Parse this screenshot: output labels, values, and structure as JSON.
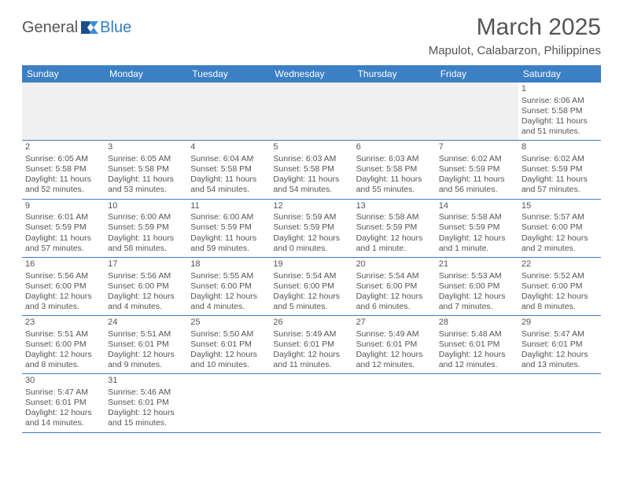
{
  "brand": {
    "part1": "General",
    "part2": "Blue"
  },
  "title": "March 2025",
  "location": "Mapulot, Calabarzon, Philippines",
  "colors": {
    "header_bg": "#3b7fc4",
    "header_text": "#ffffff",
    "border": "#3b7fc4",
    "body_text": "#555555",
    "empty_row_bg": "#f0f0f0",
    "brand_gray": "#555555",
    "brand_blue": "#2f7fbf"
  },
  "day_headers": [
    "Sunday",
    "Monday",
    "Tuesday",
    "Wednesday",
    "Thursday",
    "Friday",
    "Saturday"
  ],
  "weeks": [
    [
      null,
      null,
      null,
      null,
      null,
      null,
      {
        "n": "1",
        "sr": "6:06 AM",
        "ss": "5:58 PM",
        "dl": "11 hours and 51 minutes."
      }
    ],
    [
      {
        "n": "2",
        "sr": "6:05 AM",
        "ss": "5:58 PM",
        "dl": "11 hours and 52 minutes."
      },
      {
        "n": "3",
        "sr": "6:05 AM",
        "ss": "5:58 PM",
        "dl": "11 hours and 53 minutes."
      },
      {
        "n": "4",
        "sr": "6:04 AM",
        "ss": "5:58 PM",
        "dl": "11 hours and 54 minutes."
      },
      {
        "n": "5",
        "sr": "6:03 AM",
        "ss": "5:58 PM",
        "dl": "11 hours and 54 minutes."
      },
      {
        "n": "6",
        "sr": "6:03 AM",
        "ss": "5:58 PM",
        "dl": "11 hours and 55 minutes."
      },
      {
        "n": "7",
        "sr": "6:02 AM",
        "ss": "5:59 PM",
        "dl": "11 hours and 56 minutes."
      },
      {
        "n": "8",
        "sr": "6:02 AM",
        "ss": "5:59 PM",
        "dl": "11 hours and 57 minutes."
      }
    ],
    [
      {
        "n": "9",
        "sr": "6:01 AM",
        "ss": "5:59 PM",
        "dl": "11 hours and 57 minutes."
      },
      {
        "n": "10",
        "sr": "6:00 AM",
        "ss": "5:59 PM",
        "dl": "11 hours and 58 minutes."
      },
      {
        "n": "11",
        "sr": "6:00 AM",
        "ss": "5:59 PM",
        "dl": "11 hours and 59 minutes."
      },
      {
        "n": "12",
        "sr": "5:59 AM",
        "ss": "5:59 PM",
        "dl": "12 hours and 0 minutes."
      },
      {
        "n": "13",
        "sr": "5:58 AM",
        "ss": "5:59 PM",
        "dl": "12 hours and 1 minute."
      },
      {
        "n": "14",
        "sr": "5:58 AM",
        "ss": "5:59 PM",
        "dl": "12 hours and 1 minute."
      },
      {
        "n": "15",
        "sr": "5:57 AM",
        "ss": "6:00 PM",
        "dl": "12 hours and 2 minutes."
      }
    ],
    [
      {
        "n": "16",
        "sr": "5:56 AM",
        "ss": "6:00 PM",
        "dl": "12 hours and 3 minutes."
      },
      {
        "n": "17",
        "sr": "5:56 AM",
        "ss": "6:00 PM",
        "dl": "12 hours and 4 minutes."
      },
      {
        "n": "18",
        "sr": "5:55 AM",
        "ss": "6:00 PM",
        "dl": "12 hours and 4 minutes."
      },
      {
        "n": "19",
        "sr": "5:54 AM",
        "ss": "6:00 PM",
        "dl": "12 hours and 5 minutes."
      },
      {
        "n": "20",
        "sr": "5:54 AM",
        "ss": "6:00 PM",
        "dl": "12 hours and 6 minutes."
      },
      {
        "n": "21",
        "sr": "5:53 AM",
        "ss": "6:00 PM",
        "dl": "12 hours and 7 minutes."
      },
      {
        "n": "22",
        "sr": "5:52 AM",
        "ss": "6:00 PM",
        "dl": "12 hours and 8 minutes."
      }
    ],
    [
      {
        "n": "23",
        "sr": "5:51 AM",
        "ss": "6:00 PM",
        "dl": "12 hours and 8 minutes."
      },
      {
        "n": "24",
        "sr": "5:51 AM",
        "ss": "6:01 PM",
        "dl": "12 hours and 9 minutes."
      },
      {
        "n": "25",
        "sr": "5:50 AM",
        "ss": "6:01 PM",
        "dl": "12 hours and 10 minutes."
      },
      {
        "n": "26",
        "sr": "5:49 AM",
        "ss": "6:01 PM",
        "dl": "12 hours and 11 minutes."
      },
      {
        "n": "27",
        "sr": "5:49 AM",
        "ss": "6:01 PM",
        "dl": "12 hours and 12 minutes."
      },
      {
        "n": "28",
        "sr": "5:48 AM",
        "ss": "6:01 PM",
        "dl": "12 hours and 12 minutes."
      },
      {
        "n": "29",
        "sr": "5:47 AM",
        "ss": "6:01 PM",
        "dl": "12 hours and 13 minutes."
      }
    ],
    [
      {
        "n": "30",
        "sr": "5:47 AM",
        "ss": "6:01 PM",
        "dl": "12 hours and 14 minutes."
      },
      {
        "n": "31",
        "sr": "5:46 AM",
        "ss": "6:01 PM",
        "dl": "12 hours and 15 minutes."
      },
      null,
      null,
      null,
      null,
      null
    ]
  ],
  "labels": {
    "sunrise": "Sunrise:",
    "sunset": "Sunset:",
    "daylight": "Daylight:"
  }
}
